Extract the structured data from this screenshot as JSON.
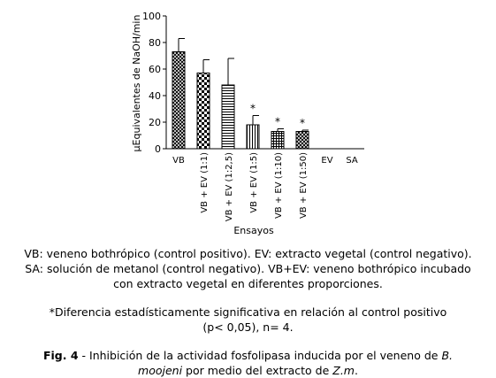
{
  "chart_data": {
    "type": "bar",
    "ylabel": "µEquivalentes de NaOH/min",
    "xlabel": "Ensayos",
    "ylim": [
      0,
      100
    ],
    "yticks": [
      0,
      20,
      40,
      60,
      80,
      100
    ],
    "grid": false,
    "categories": [
      "VB",
      "VB + EV (1:1)",
      "VB + EV (1:2,5)",
      "VB + EV (1:5)",
      "VB + EV (1:10)",
      "VB + EV (1:50)",
      "EV",
      "SA"
    ],
    "values": [
      73,
      57,
      48,
      18,
      13,
      13,
      0,
      0
    ],
    "errors": [
      10,
      10,
      20,
      7,
      2,
      1,
      0,
      0
    ],
    "significant": [
      false,
      false,
      false,
      true,
      true,
      true,
      false,
      false
    ],
    "significance_marker": "*",
    "patterns": [
      "crosshatch",
      "checker",
      "hlines",
      "vlines",
      "grid",
      "crosshatch",
      "none",
      "none"
    ]
  },
  "legend_text": {
    "line1": "VB: veneno bothrópico (control positivo). EV: extracto vegetal (control negativo).",
    "line2": "SA: solución de metanol (control negativo). VB+EV: veneno bothrópico incubado",
    "line3": "con extracto vegetal en diferentes proporciones."
  },
  "footnote": {
    "line1": "*Diferencia estadísticamente significativa en relación al control positivo",
    "line2": "(p< 0,05), n= 4."
  },
  "figure_caption": {
    "label": "Fig. 4",
    "text_a": " - Inhibición de la actividad fosfolipasa inducida por el veneno de ",
    "species1": "B.",
    "species1b": "moojeni",
    "text_b": " por medio del extracto de ",
    "species2": "Z.m",
    "text_c": "."
  }
}
